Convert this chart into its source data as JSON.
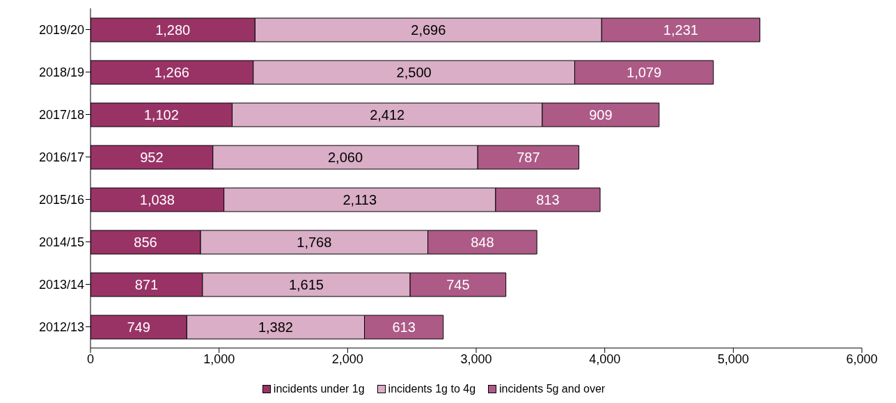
{
  "chart_data": {
    "type": "bar",
    "orientation": "horizontal",
    "stacked": true,
    "categories": [
      "2019/20",
      "2018/19",
      "2017/18",
      "2016/17",
      "2015/16",
      "2014/15",
      "2013/14",
      "2012/13"
    ],
    "series": [
      {
        "name": "incidents under 1g",
        "color": "#993366",
        "values": [
          1280,
          1266,
          1102,
          952,
          1038,
          856,
          871,
          749
        ],
        "value_labels": [
          "1,280",
          "1,266",
          "1,102",
          "952",
          "1,038",
          "856",
          "871",
          "749"
        ]
      },
      {
        "name": "incidents 1g to 4g",
        "color": "#d9aec6",
        "values": [
          2696,
          2500,
          2412,
          2060,
          2113,
          1768,
          1615,
          1382
        ],
        "value_labels": [
          "2,696",
          "2,500",
          "2,412",
          "2,060",
          "2,113",
          "1,768",
          "1,615",
          "1,382"
        ]
      },
      {
        "name": "incidents 5g and over",
        "color": "#ad5a87",
        "values": [
          1231,
          1079,
          909,
          787,
          813,
          848,
          745,
          613
        ],
        "value_labels": [
          "1,231",
          "1,079",
          "909",
          "787",
          "813",
          "848",
          "745",
          "613"
        ]
      }
    ],
    "xlim": [
      0,
      6000
    ],
    "xticks": [
      0,
      {
        "value": 1000,
        "label": "1,000"
      },
      {
        "value": 2000,
        "label": "2,000"
      },
      {
        "value": 3000,
        "label": "3,000"
      },
      {
        "value": 4000,
        "label": "4,000"
      },
      {
        "value": 5000,
        "label": "5,000"
      },
      {
        "value": 6000,
        "label": "6,000"
      }
    ],
    "legend": "bottom"
  }
}
